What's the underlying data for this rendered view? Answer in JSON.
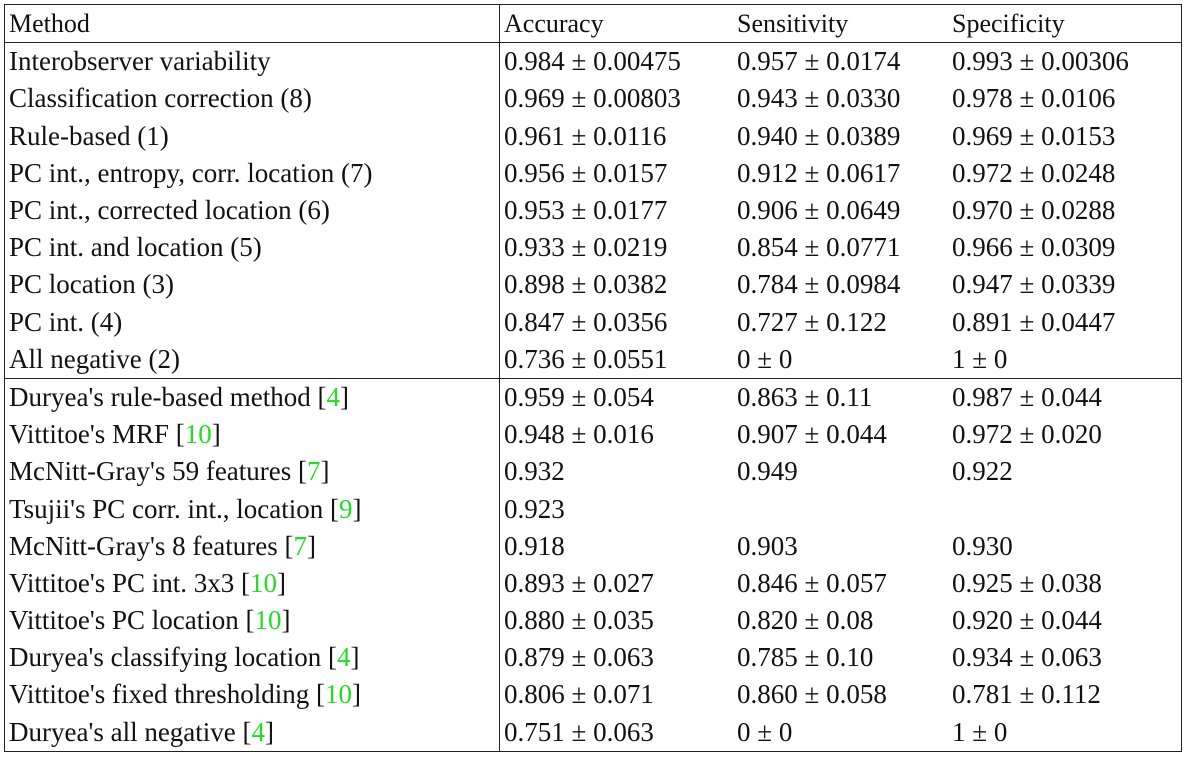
{
  "table": {
    "header": [
      "Method",
      "Accuracy",
      "Sensitivity",
      "Specificity"
    ],
    "groups": [
      [
        [
          "Interobserver variability",
          "0.984 ± 0.00475",
          "0.957 ± 0.0174",
          "0.993 ± 0.00306"
        ],
        [
          "Classification correction (8)",
          "0.969 ± 0.00803",
          "0.943 ± 0.0330",
          "0.978 ± 0.0106"
        ],
        [
          "Rule-based (1)",
          "0.961 ± 0.0116",
          "0.940 ± 0.0389",
          "0.969 ± 0.0153"
        ],
        [
          "PC int., entropy, corr. location (7)",
          "0.956 ± 0.0157",
          "0.912 ± 0.0617",
          "0.972 ± 0.0248"
        ],
        [
          "PC int., corrected location (6)",
          "0.953 ± 0.0177",
          "0.906 ± 0.0649",
          "0.970 ± 0.0288"
        ],
        [
          "PC int. and location (5)",
          "0.933 ± 0.0219",
          "0.854 ± 0.0771",
          "0.966 ± 0.0309"
        ],
        [
          "PC location (3)",
          "0.898 ± 0.0382",
          "0.784 ± 0.0984",
          "0.947 ± 0.0339"
        ],
        [
          "PC int. (4)",
          "0.847 ± 0.0356",
          "0.727 ± 0.122",
          "0.891 ± 0.0447"
        ],
        [
          "All negative (2)",
          "0.736 ± 0.0551",
          "0 ± 0",
          "1 ± 0"
        ]
      ],
      [
        [
          "Duryea's rule-based method [4]",
          "0.959 ± 0.054",
          "0.863 ± 0.11",
          "0.987 ± 0.044"
        ],
        [
          "Vittitoe's MRF [10]",
          "0.948 ± 0.016",
          "0.907 ± 0.044",
          "0.972 ± 0.020"
        ],
        [
          "McNitt-Gray's 59 features [7]",
          "0.932",
          "0.949",
          "0.922"
        ],
        [
          "Tsujii's PC corr. int., location [9]",
          "0.923",
          null,
          null
        ],
        [
          "McNitt-Gray's 8 features [7]",
          "0.918",
          "0.903",
          "0.930"
        ],
        [
          "Vittitoe's PC int. 3x3 [10]",
          "0.893 ± 0.027",
          "0.846 ± 0.057",
          "0.925 ± 0.038"
        ],
        [
          "Vittitoe's PC location [10]",
          "0.880 ± 0.035",
          "0.820 ± 0.08",
          "0.920 ± 0.044"
        ],
        [
          "Duryea's classifying location [4]",
          "0.879 ± 0.063",
          "0.785 ± 0.10",
          "0.934 ± 0.063"
        ],
        [
          "Vittitoe's fixed thresholding [10]",
          "0.806 ± 0.071",
          "0.860 ± 0.058",
          "0.781 ± 0.112"
        ],
        [
          "Duryea's all negative [4]",
          "0.751 ± 0.063",
          "0 ± 0",
          "1 ± 0"
        ]
      ]
    ]
  }
}
